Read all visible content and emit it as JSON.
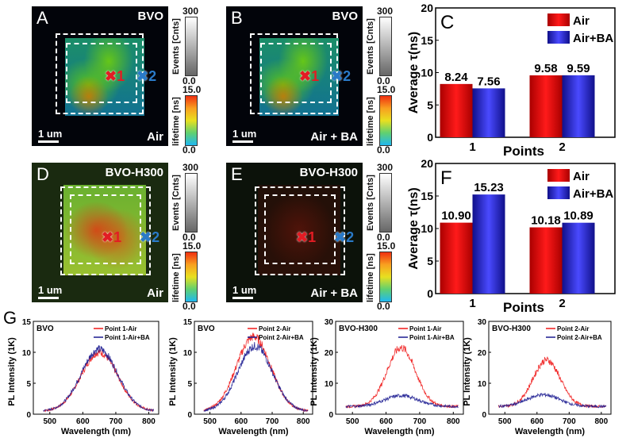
{
  "panels": [
    {
      "label": "A",
      "title": "BVO",
      "condition": "Air",
      "scale": "1 um",
      "p1": "1",
      "p2": "2",
      "events_max": "300",
      "events_min": "0.0",
      "events_label": "Events [Cnts]",
      "life_max": "15.0",
      "life_min": "0.0",
      "life_label": "lifetime [ns]",
      "intensity": "medium"
    },
    {
      "label": "B",
      "title": "BVO",
      "condition": "Air + BA",
      "scale": "1 um",
      "p1": "1",
      "p2": "2",
      "events_max": "300",
      "events_min": "0.0",
      "events_label": "Events [Cnts]",
      "life_max": "15.0",
      "life_min": "0.0",
      "life_label": "lifetime [ns]",
      "intensity": "medium"
    },
    {
      "label": "D",
      "title": "BVO-H300",
      "condition": "Air",
      "scale": "1 um",
      "p1": "1",
      "p2": "2",
      "events_max": "300",
      "events_min": "0.0",
      "events_label": "Events [Cnts]",
      "life_max": "15.0",
      "life_min": "0.0",
      "life_label": "lifetime [ns]",
      "intensity": "high"
    },
    {
      "label": "E",
      "title": "BVO-H300",
      "condition": "Air + BA",
      "scale": "1 um",
      "p1": "1",
      "p2": "2",
      "events_max": "300",
      "events_min": "0.0",
      "events_label": "Events [Cnts]",
      "life_max": "15.0",
      "life_min": "0.0",
      "life_label": "lifetime [ns]",
      "intensity": "low"
    }
  ],
  "g_label": "G",
  "colors": {
    "air": "#e8141c",
    "ba": "#2a2ae0",
    "red_line": "#f01818",
    "blue_line": "#1a1a90"
  },
  "chart_data": [
    {
      "type": "bar",
      "panel": "C",
      "categories": [
        "1",
        "2"
      ],
      "xlabel": "Points",
      "ylabel": "Average τ(ns)",
      "ylim": [
        0,
        20
      ],
      "yticks": [
        0,
        5,
        10,
        15,
        20
      ],
      "legend": "top-right",
      "series": [
        {
          "name": "Air",
          "values": [
            8.24,
            9.58
          ]
        },
        {
          "name": "Air+BA",
          "values": [
            7.56,
            9.59
          ]
        }
      ],
      "labels": [
        [
          "8.24",
          "9.58"
        ],
        [
          "7.56",
          "9.59"
        ]
      ]
    },
    {
      "type": "bar",
      "panel": "F",
      "categories": [
        "1",
        "2"
      ],
      "xlabel": "Points",
      "ylabel": "Average τ(ns)",
      "ylim": [
        0,
        20
      ],
      "yticks": [
        0,
        5,
        10,
        15,
        20
      ],
      "legend": "top-right",
      "series": [
        {
          "name": "Air",
          "values": [
            10.9,
            10.18
          ]
        },
        {
          "name": "Air+BA",
          "values": [
            15.23,
            10.89
          ]
        }
      ],
      "labels": [
        [
          "10.90",
          "10.18"
        ],
        [
          "15.23",
          "10.89"
        ]
      ]
    },
    {
      "type": "line",
      "title": "BVO",
      "xlabel": "Wavelength (nm)",
      "ylabel": "PL Intensity (1K)",
      "xlim": [
        450,
        830
      ],
      "ylim": [
        0,
        15
      ],
      "xticks": [
        500,
        600,
        700,
        800
      ],
      "yticks": [
        0,
        5,
        10,
        15
      ],
      "legend": "top-right",
      "series": [
        {
          "name": "Point 1-Air",
          "peak": 9.5,
          "center": 650,
          "width": 55,
          "base": 0.5
        },
        {
          "name": "Point 1-Air+BA",
          "peak": 10,
          "center": 650,
          "width": 55,
          "base": 0.5
        }
      ]
    },
    {
      "type": "line",
      "title": "BVO",
      "xlabel": "Wavelength (nm)",
      "ylabel": "PL Intensity (1K)",
      "xlim": [
        450,
        830
      ],
      "ylim": [
        0,
        15
      ],
      "xticks": [
        500,
        600,
        700,
        800
      ],
      "yticks": [
        0,
        5,
        10,
        15
      ],
      "legend": "top-right",
      "series": [
        {
          "name": "Point 2-Air",
          "peak": 12,
          "center": 640,
          "width": 55,
          "base": 0.5
        },
        {
          "name": "Point 2-Air+BA",
          "peak": 10.5,
          "center": 645,
          "width": 55,
          "base": 0.5
        }
      ]
    },
    {
      "type": "line",
      "title": "BVO-H300",
      "xlabel": "Wavelength (nm)",
      "ylabel": "PL Intensity (1K)",
      "xlim": [
        450,
        830
      ],
      "ylim": [
        0,
        30
      ],
      "xticks": [
        500,
        600,
        700,
        800
      ],
      "yticks": [
        0,
        10,
        20,
        30
      ],
      "legend": "top-right",
      "series": [
        {
          "name": "Point 1-Air",
          "peak": 19,
          "center": 645,
          "width": 42,
          "base": 2.5
        },
        {
          "name": "Point 1-Air+BA",
          "peak": 3.5,
          "center": 645,
          "width": 50,
          "base": 2.5
        }
      ]
    },
    {
      "type": "line",
      "title": "BVO-H300",
      "xlabel": "Wavelength (nm)",
      "ylabel": "PL Intensity (1K)",
      "xlim": [
        450,
        830
      ],
      "ylim": [
        0,
        30
      ],
      "xticks": [
        500,
        600,
        700,
        800
      ],
      "yticks": [
        0,
        10,
        20,
        30
      ],
      "legend": "top-right",
      "series": [
        {
          "name": "Point 2-Air",
          "peak": 15,
          "center": 630,
          "width": 42,
          "base": 2.5
        },
        {
          "name": "Point 2-Air+BA",
          "peak": 3.8,
          "center": 620,
          "width": 50,
          "base": 2.5
        }
      ]
    }
  ]
}
